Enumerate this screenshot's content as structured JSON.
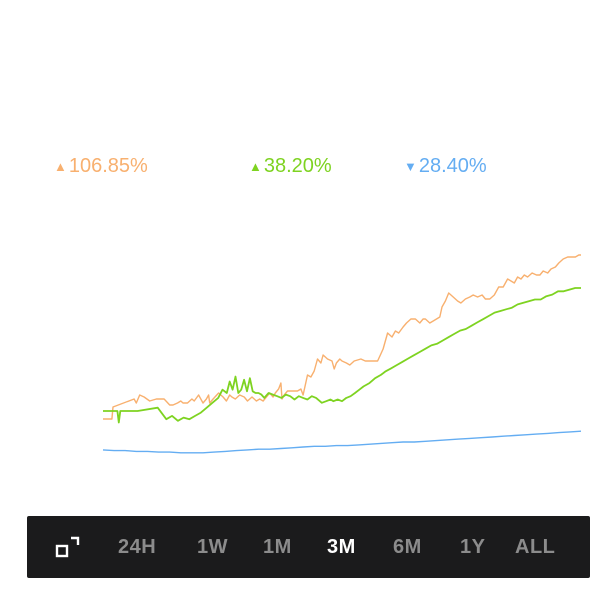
{
  "colors": {
    "orange": "#f8b06f",
    "green": "#7ed321",
    "blue": "#64adf2",
    "toolbar_bg": "#1b1b1c",
    "inactive": "#8c8c8c",
    "active": "#ffffff"
  },
  "legend": [
    {
      "arrow": "▲",
      "value": "106.85%",
      "color": "#f8b06f"
    },
    {
      "arrow": "▲",
      "value": "38.20%",
      "color": "#7ed321"
    },
    {
      "arrow": "▼",
      "value": "28.40%",
      "color": "#64adf2"
    }
  ],
  "toolbar": {
    "expand_icon": "expand-icon",
    "ranges": [
      "24H",
      "1W",
      "1M",
      "3M",
      "6M",
      "1Y",
      "ALL"
    ],
    "selected": "3M"
  },
  "chart_data": {
    "type": "line",
    "grid": false,
    "legend_placement": "top",
    "series": [
      {
        "color": "#f8b06f",
        "points": [
          [
            0,
            18
          ],
          [
            8,
            18
          ],
          [
            9,
            24
          ],
          [
            28,
            28
          ],
          [
            30,
            26
          ],
          [
            33,
            30
          ],
          [
            37,
            29
          ],
          [
            42,
            27
          ],
          [
            48,
            28
          ],
          [
            55,
            28
          ],
          [
            60,
            25
          ],
          [
            63,
            25
          ],
          [
            67,
            26
          ],
          [
            70,
            27
          ],
          [
            72,
            26
          ],
          [
            76,
            26
          ],
          [
            80,
            28
          ],
          [
            82,
            27
          ],
          [
            86,
            30
          ],
          [
            90,
            26
          ],
          [
            93,
            28
          ],
          [
            95,
            30
          ],
          [
            96,
            26
          ],
          [
            99,
            28
          ],
          [
            104,
            31
          ],
          [
            108,
            29
          ],
          [
            111,
            27
          ],
          [
            114,
            30
          ],
          [
            116,
            29
          ],
          [
            119,
            28
          ],
          [
            123,
            30
          ],
          [
            127,
            29
          ],
          [
            130,
            27
          ],
          [
            134,
            29
          ],
          [
            138,
            27
          ],
          [
            141,
            28
          ],
          [
            144,
            27
          ],
          [
            147,
            29
          ],
          [
            150,
            31
          ],
          [
            153,
            29
          ],
          [
            155,
            31
          ],
          [
            158,
            33
          ],
          [
            160,
            36
          ],
          [
            161,
            28
          ],
          [
            163,
            30
          ],
          [
            166,
            32
          ],
          [
            169,
            32
          ],
          [
            172,
            32
          ],
          [
            175,
            32
          ],
          [
            178,
            33
          ],
          [
            180,
            30
          ],
          [
            184,
            40
          ],
          [
            187,
            39
          ],
          [
            190,
            42
          ],
          [
            193,
            48
          ],
          [
            196,
            46
          ],
          [
            198,
            50
          ],
          [
            202,
            48
          ],
          [
            206,
            47
          ],
          [
            208,
            43
          ],
          [
            210,
            46
          ],
          [
            213,
            48
          ],
          [
            215,
            47
          ],
          [
            219,
            46
          ],
          [
            222,
            45
          ],
          [
            226,
            47
          ],
          [
            232,
            48
          ],
          [
            236,
            47
          ],
          [
            240,
            47
          ],
          [
            243,
            47
          ],
          [
            247,
            47
          ],
          [
            252,
            53
          ],
          [
            256,
            61
          ],
          [
            260,
            59
          ],
          [
            263,
            62
          ],
          [
            266,
            61
          ],
          [
            270,
            64
          ],
          [
            273,
            66
          ],
          [
            277,
            68
          ],
          [
            281,
            68
          ],
          [
            285,
            66
          ],
          [
            288,
            68
          ],
          [
            290,
            68
          ],
          [
            294,
            66
          ],
          [
            297,
            67
          ],
          [
            300,
            68
          ],
          [
            303,
            69
          ],
          [
            305,
            74
          ],
          [
            308,
            77
          ],
          [
            311,
            81
          ],
          [
            315,
            79
          ],
          [
            319,
            77
          ],
          [
            322,
            76
          ],
          [
            326,
            78
          ],
          [
            330,
            79
          ],
          [
            333,
            80
          ],
          [
            337,
            79
          ],
          [
            341,
            80
          ],
          [
            344,
            78
          ],
          [
            348,
            78
          ],
          [
            352,
            80
          ],
          [
            356,
            84
          ],
          [
            360,
            84
          ],
          [
            364,
            88
          ],
          [
            367,
            87
          ],
          [
            370,
            86
          ],
          [
            373,
            89
          ],
          [
            376,
            88
          ],
          [
            379,
            90
          ],
          [
            382,
            89
          ],
          [
            386,
            91
          ],
          [
            390,
            90
          ],
          [
            393,
            90
          ],
          [
            396,
            92
          ],
          [
            400,
            91
          ],
          [
            403,
            93
          ],
          [
            407,
            94
          ],
          [
            410,
            96
          ],
          [
            414,
            98
          ],
          [
            418,
            99
          ],
          [
            422,
            99
          ],
          [
            425,
            99
          ],
          [
            428,
            100
          ],
          [
            430,
            100
          ]
        ]
      },
      {
        "color": "#7ed321",
        "points": [
          [
            0,
            25
          ],
          [
            10,
            25
          ],
          [
            11,
            18
          ],
          [
            12,
            25
          ],
          [
            24,
            25
          ],
          [
            38,
            27
          ],
          [
            44,
            20
          ],
          [
            48,
            22
          ],
          [
            52,
            19
          ],
          [
            56,
            21
          ],
          [
            60,
            20
          ],
          [
            64,
            22
          ],
          [
            68,
            24
          ],
          [
            72,
            27
          ],
          [
            76,
            30
          ],
          [
            80,
            33
          ],
          [
            83,
            38
          ],
          [
            86,
            36
          ],
          [
            88,
            43
          ],
          [
            90,
            38
          ],
          [
            92,
            46
          ],
          [
            94,
            36
          ],
          [
            96,
            38
          ],
          [
            98,
            44
          ],
          [
            100,
            37
          ],
          [
            102,
            45
          ],
          [
            104,
            37
          ],
          [
            106,
            36
          ],
          [
            108,
            36
          ],
          [
            110,
            35
          ],
          [
            112,
            33
          ],
          [
            115,
            36
          ],
          [
            118,
            35
          ],
          [
            121,
            34
          ],
          [
            124,
            33
          ],
          [
            127,
            35
          ],
          [
            130,
            34
          ],
          [
            133,
            32
          ],
          [
            136,
            34
          ],
          [
            139,
            33
          ],
          [
            142,
            32
          ],
          [
            145,
            34
          ],
          [
            148,
            33
          ],
          [
            152,
            30
          ],
          [
            155,
            31
          ],
          [
            158,
            32
          ],
          [
            160,
            31
          ],
          [
            163,
            32
          ],
          [
            166,
            31
          ],
          [
            169,
            33
          ],
          [
            172,
            34
          ],
          [
            175,
            36
          ],
          [
            178,
            38
          ],
          [
            181,
            40
          ],
          [
            185,
            42
          ],
          [
            189,
            45
          ],
          [
            193,
            47
          ],
          [
            196,
            49
          ],
          [
            200,
            51
          ],
          [
            204,
            53
          ],
          [
            208,
            55
          ],
          [
            212,
            57
          ],
          [
            216,
            59
          ],
          [
            220,
            61
          ],
          [
            224,
            63
          ],
          [
            228,
            65
          ],
          [
            232,
            66
          ],
          [
            236,
            68
          ],
          [
            240,
            70
          ],
          [
            244,
            72
          ],
          [
            248,
            74
          ],
          [
            252,
            75
          ],
          [
            256,
            77
          ],
          [
            260,
            79
          ],
          [
            264,
            81
          ],
          [
            268,
            83
          ],
          [
            272,
            85
          ],
          [
            276,
            86
          ],
          [
            280,
            87
          ],
          [
            284,
            88
          ],
          [
            288,
            90
          ],
          [
            292,
            91
          ],
          [
            296,
            92
          ],
          [
            300,
            93
          ],
          [
            304,
            93
          ],
          [
            308,
            95
          ],
          [
            312,
            96
          ],
          [
            316,
            98
          ],
          [
            320,
            98
          ],
          [
            324,
            99
          ],
          [
            328,
            100
          ],
          [
            332,
            100
          ]
        ]
      },
      {
        "color": "#64adf2",
        "points": [
          [
            0,
            14
          ],
          [
            10,
            13
          ],
          [
            20,
            13
          ],
          [
            30,
            12
          ],
          [
            40,
            12
          ],
          [
            50,
            11
          ],
          [
            60,
            11
          ],
          [
            70,
            10
          ],
          [
            80,
            10
          ],
          [
            90,
            10
          ],
          [
            100,
            11
          ],
          [
            110,
            12
          ],
          [
            120,
            13
          ],
          [
            130,
            14
          ],
          [
            140,
            15
          ],
          [
            150,
            15
          ],
          [
            160,
            16
          ],
          [
            170,
            17
          ],
          [
            180,
            18
          ],
          [
            190,
            19
          ],
          [
            200,
            19
          ],
          [
            210,
            20
          ],
          [
            220,
            20
          ],
          [
            230,
            21
          ],
          [
            240,
            22
          ],
          [
            250,
            23
          ],
          [
            260,
            24
          ],
          [
            270,
            25
          ],
          [
            280,
            25
          ],
          [
            290,
            26
          ],
          [
            300,
            27
          ],
          [
            310,
            28
          ],
          [
            320,
            29
          ],
          [
            330,
            30
          ],
          [
            340,
            31
          ],
          [
            350,
            32
          ],
          [
            360,
            33
          ],
          [
            370,
            34
          ],
          [
            380,
            35
          ],
          [
            390,
            36
          ],
          [
            400,
            37
          ],
          [
            410,
            38
          ],
          [
            420,
            39
          ],
          [
            430,
            40
          ]
        ]
      }
    ]
  }
}
